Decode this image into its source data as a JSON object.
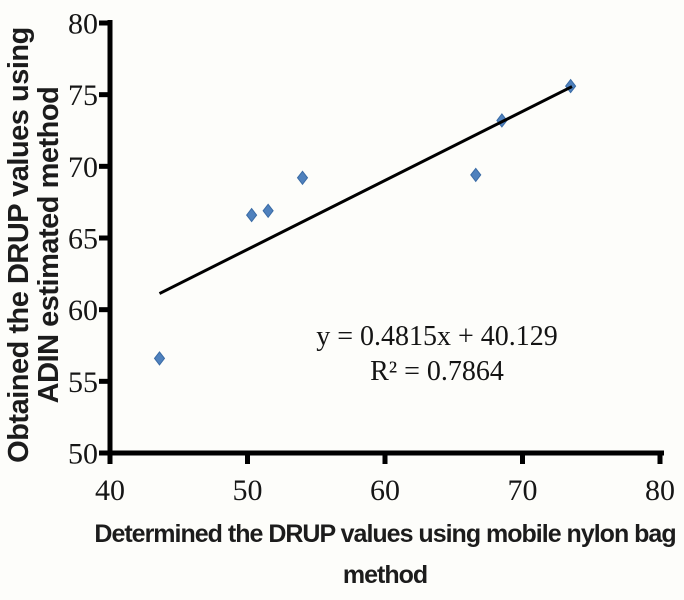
{
  "chart_data": {
    "type": "scatter",
    "title": "",
    "xlabel": "Determined the DRUP values using mobile nylon bag method",
    "xlabel_lines": [
      "Determined the DRUP values using mobile nylon bag",
      "method"
    ],
    "ylabel": "Obtained the DRUP values using ADIN estimated method",
    "ylabel_lines": [
      "Obtained the DRUP values using",
      "ADIN estimated method"
    ],
    "xlim": [
      40,
      80
    ],
    "ylim": [
      50,
      80
    ],
    "x_ticks": [
      40,
      50,
      60,
      70,
      80
    ],
    "y_ticks": [
      50,
      55,
      60,
      65,
      70,
      75,
      80
    ],
    "grid": false,
    "legend": "none",
    "points": [
      {
        "x": 43.6,
        "y": 56.6
      },
      {
        "x": 50.3,
        "y": 66.6
      },
      {
        "x": 51.5,
        "y": 66.9
      },
      {
        "x": 54.0,
        "y": 69.2
      },
      {
        "x": 66.6,
        "y": 69.4
      },
      {
        "x": 68.5,
        "y": 73.2
      },
      {
        "x": 73.5,
        "y": 75.6
      }
    ],
    "trendline": {
      "equation": "y = 0.4815x + 40.129",
      "r_squared_label": "R² = 0.7864",
      "slope": 0.4815,
      "intercept": 40.129,
      "x_start": 43.6,
      "x_end": 73.6
    },
    "marker": {
      "shape": "diamond",
      "fill": "#4F81BD",
      "stroke": "#3A6BA5"
    },
    "colors": {
      "axis": "#000000",
      "trendline": "#000000",
      "tick_text": "#161616"
    }
  }
}
